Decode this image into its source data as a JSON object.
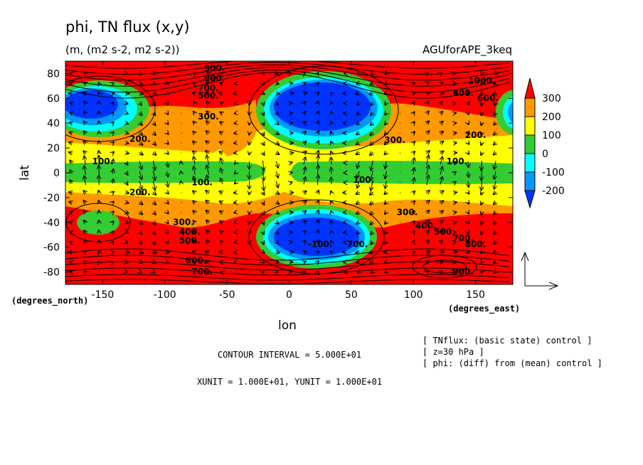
{
  "header": {
    "title": "phi, TN flux (x,y)",
    "units": "(m, (m2 s-2, m2 s-2))",
    "experiment": "AGUforAPE_3keq"
  },
  "footer": {
    "contour_interval": "CONTOUR INTERVAL = 5.000E+01",
    "vector_units": "XUNIT = 1.000E+01, YUNIT = 1.000E+01",
    "info_lines": [
      "[ TNflux: (basic state) control ]",
      "[ z=30 hPa ]",
      "[ phi: (diff) from (mean) control ]"
    ]
  },
  "chart_data": {
    "type": "heatmap",
    "title": "phi, TN flux (x,y)",
    "xlabel": "lon",
    "ylabel": "lat",
    "x_unit_label": "(degrees_east)",
    "y_unit_label": "(degrees_north)",
    "xlim": [
      -180,
      180
    ],
    "ylim": [
      -90,
      90
    ],
    "x_ticks": [
      -150,
      -100,
      -50,
      0,
      50,
      100,
      150
    ],
    "y_ticks": [
      -80,
      -60,
      -40,
      -20,
      0,
      20,
      40,
      60,
      80
    ],
    "colorbar": {
      "levels": [
        300,
        200,
        100,
        0,
        -100,
        -200
      ],
      "colors": {
        "above_300": "#ff0000",
        "200_300": "#ff9900",
        "100_200": "#ffff00",
        "0_100": "#33cc33",
        "-100_0": "#00ffff",
        "-200_-100": "#0099ff",
        "below_-200": "#0000cc"
      }
    },
    "contour_labels": [
      {
        "text": "900.",
        "lon": -60,
        "lat": 82
      },
      {
        "text": "800.",
        "lon": -60,
        "lat": 74
      },
      {
        "text": "700.",
        "lon": -65,
        "lat": 66
      },
      {
        "text": "500.",
        "lon": -65,
        "lat": 60
      },
      {
        "text": "300.",
        "lon": -65,
        "lat": 43
      },
      {
        "text": "200.",
        "lon": -120,
        "lat": 25
      },
      {
        "text": "100.",
        "lon": -150,
        "lat": 7
      },
      {
        "text": "100.",
        "lon": -70,
        "lat": -10
      },
      {
        "text": "200.",
        "lon": -120,
        "lat": -18
      },
      {
        "text": "100.",
        "lon": 60,
        "lat": -8
      },
      {
        "text": "100.",
        "lon": 135,
        "lat": 7
      },
      {
        "text": "300.",
        "lon": 85,
        "lat": 24
      },
      {
        "text": "200.",
        "lon": 150,
        "lat": 28
      },
      {
        "text": "1000.",
        "lon": 155,
        "lat": 72
      },
      {
        "text": "300.",
        "lon": 95,
        "lat": -34
      },
      {
        "text": "300.",
        "lon": -85,
        "lat": -42
      },
      {
        "text": "400.",
        "lon": -80,
        "lat": -50
      },
      {
        "text": "500.",
        "lon": -80,
        "lat": -57
      },
      {
        "text": "600.",
        "lon": -75,
        "lat": -73
      },
      {
        "text": "700.",
        "lon": -70,
        "lat": -82
      },
      {
        "text": "400.",
        "lon": 110,
        "lat": -45
      },
      {
        "text": "500.",
        "lon": 125,
        "lat": -50
      },
      {
        "text": "700.",
        "lon": 140,
        "lat": -55
      },
      {
        "text": "800.",
        "lon": 150,
        "lat": -60
      },
      {
        "text": "900.",
        "lon": 140,
        "lat": -82
      },
      {
        "text": "-100.",
        "lon": 25,
        "lat": -60
      },
      {
        "text": "700.",
        "lon": 55,
        "lat": -60
      },
      {
        "text": "600.",
        "lon": 160,
        "lat": 58
      },
      {
        "text": "800.",
        "lon": 140,
        "lat": 62
      }
    ]
  }
}
